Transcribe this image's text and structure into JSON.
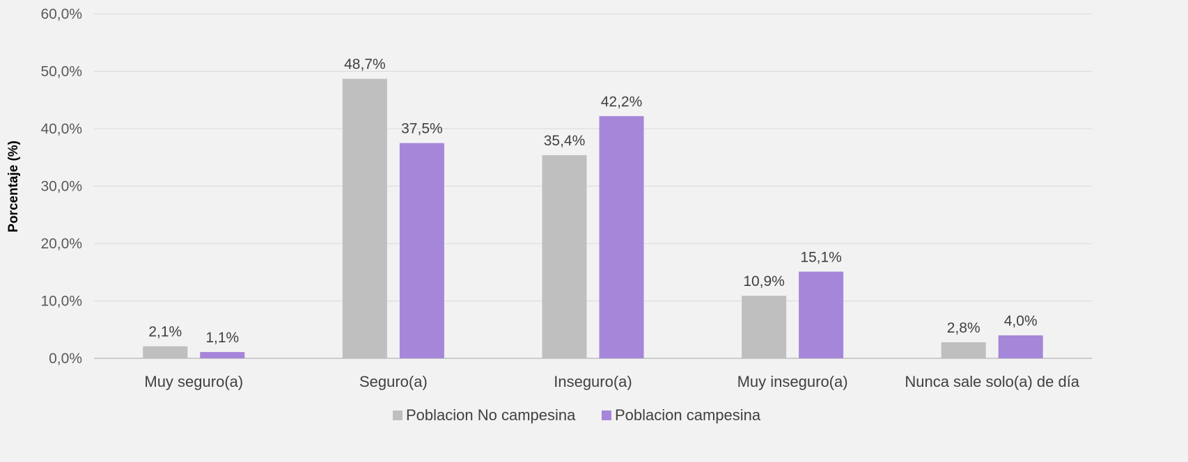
{
  "chart_data": {
    "type": "bar",
    "title": "",
    "xlabel": "",
    "ylabel": "Porcentaje (%)",
    "ylim": [
      0,
      60
    ],
    "ytick_step": 10,
    "ytick_labels": [
      "0,0%",
      "10,0%",
      "20,0%",
      "30,0%",
      "40,0%",
      "50,0%",
      "60,0%"
    ],
    "grid": true,
    "legend_position": "bottom",
    "categories": [
      "Muy seguro(a)",
      "Seguro(a)",
      "Inseguro(a)",
      "Muy inseguro(a)",
      "Nunca sale solo(a) de día"
    ],
    "series": [
      {
        "name": "Poblacion No campesina",
        "color": "#bfbfbf",
        "values": [
          2.1,
          48.7,
          35.4,
          10.9,
          2.8
        ],
        "labels": [
          "2,1%",
          "48,7%",
          "35,4%",
          "10,9%",
          "2,8%"
        ]
      },
      {
        "name": "Poblacion campesina",
        "color": "#a686d9",
        "values": [
          1.1,
          37.5,
          42.2,
          15.1,
          4.0
        ],
        "labels": [
          "1,1%",
          "37,5%",
          "42,2%",
          "15,1%",
          "4,0%"
        ]
      }
    ],
    "colors": {
      "background": "#f2f2f3",
      "gridline": "#d9d9d9",
      "axis": "#bfbfbf"
    }
  }
}
